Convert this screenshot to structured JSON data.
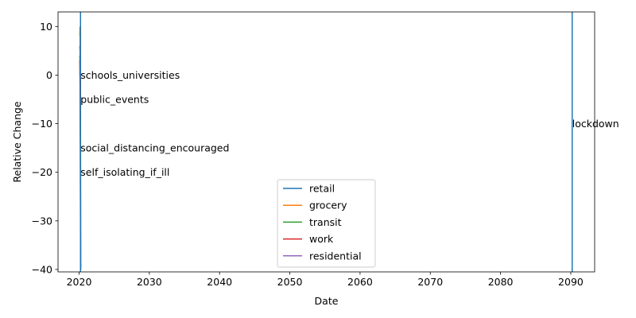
{
  "chart_data": {
    "type": "line",
    "xlabel": "Date",
    "ylabel": "Relative Change",
    "xlim": [
      2017.0,
      2093.4
    ],
    "ylim": [
      -40.5,
      13.0
    ],
    "xticks": [
      2020,
      2030,
      2040,
      2050,
      2060,
      2070,
      2080,
      2090
    ],
    "yticks": [
      10,
      0,
      -10,
      -20,
      -30,
      -40
    ],
    "ytick_labels": [
      "10",
      "0",
      "−10",
      "−20",
      "−30",
      "−40"
    ],
    "legend_position": "lower-center",
    "series": [
      {
        "name": "retail",
        "color": "#1f77b4",
        "x": [
          2020.1,
          2020.12,
          2020.14,
          2020.16,
          2020.18,
          2020.2,
          2020.22,
          2020.24
        ],
        "y": [
          6,
          5,
          3,
          0,
          -5,
          -15,
          -28,
          -40
        ]
      },
      {
        "name": "grocery",
        "color": "#ff7f0e",
        "x": [
          2020.1,
          2020.12,
          2020.14,
          2020.16,
          2020.18,
          2020.2
        ],
        "y": [
          8,
          10,
          6,
          0,
          -4,
          -10
        ]
      },
      {
        "name": "transit",
        "color": "#2ca02c",
        "x": [
          2020.1,
          2020.12,
          2020.14,
          2020.16,
          2020.18,
          2020.2
        ],
        "y": [
          4,
          2,
          0,
          -8,
          -20,
          -34
        ]
      },
      {
        "name": "work",
        "color": "#d62728",
        "x": [
          2020.1,
          2020.12,
          2020.14,
          2020.16,
          2020.18,
          2020.2
        ],
        "y": [
          3,
          1,
          -2,
          -6,
          -15,
          -28
        ]
      },
      {
        "name": "residential",
        "color": "#9467bd",
        "x": [
          2020.1,
          2020.12,
          2020.14,
          2020.16,
          2020.18,
          2020.2
        ],
        "y": [
          0,
          1,
          2,
          4,
          7,
          10
        ]
      }
    ],
    "vlines": [
      {
        "x": 2020.2,
        "color": "#1f77b4"
      },
      {
        "x": 2090.2,
        "color": "#1f77b4"
      }
    ],
    "annotations": [
      {
        "text": "schools_universities",
        "x": 2020.2,
        "y": 0
      },
      {
        "text": "public_events",
        "x": 2020.2,
        "y": -5
      },
      {
        "text": "social_distancing_encouraged",
        "x": 2020.2,
        "y": -15
      },
      {
        "text": "self_isolating_if_ill",
        "x": 2020.2,
        "y": -20
      },
      {
        "text": "lockdown",
        "x": 2090.2,
        "y": -10
      }
    ]
  }
}
